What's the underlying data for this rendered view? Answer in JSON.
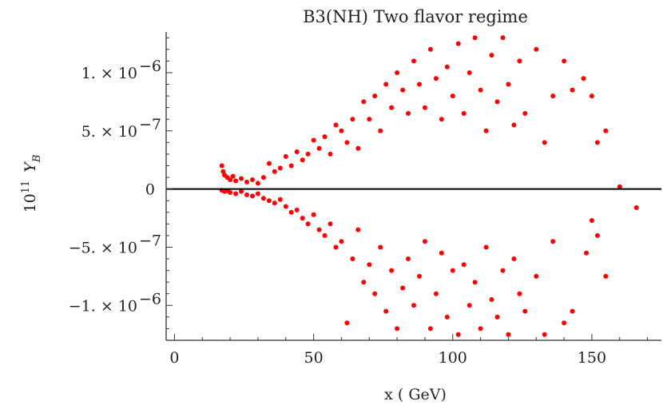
{
  "chart_data": {
    "type": "scatter",
    "title": "B3(NH) Two flavor regime",
    "xlabel": "x ( GeV)",
    "ylabel_prefix": "10",
    "ylabel_exp": "11",
    "ylabel_symbol": "Y",
    "ylabel_sub": "B",
    "xlim": [
      -3,
      175
    ],
    "ylim": [
      -1.3e-06,
      1.35e-06
    ],
    "x_ticks": [
      {
        "value": 0,
        "label": "0"
      },
      {
        "value": 50,
        "label": "50"
      },
      {
        "value": 100,
        "label": "100"
      },
      {
        "value": 150,
        "label": "150"
      }
    ],
    "y_ticks": [
      {
        "value": 1e-06,
        "mant": "1. × 10",
        "exp": "−6"
      },
      {
        "value": 5e-07,
        "mant": "5. × 10",
        "exp": "−7"
      },
      {
        "value": 0,
        "mant": "0",
        "exp": ""
      },
      {
        "value": -5e-07,
        "mant": "−5. × 10",
        "exp": "−7"
      },
      {
        "value": -1e-06,
        "mant": "−1. × 10",
        "exp": "−6"
      }
    ],
    "marker_color": "#ff0000",
    "zero_line": true,
    "series": [
      {
        "points": [
          [
            17,
            2e-07
          ],
          [
            17.5,
            1.5e-07
          ],
          [
            18,
            1.2e-07
          ],
          [
            19,
            1e-07
          ],
          [
            20,
            8e-08
          ],
          [
            21,
            1.1e-07
          ],
          [
            22,
            7e-08
          ],
          [
            24,
            9e-08
          ],
          [
            26,
            6e-08
          ],
          [
            28,
            8e-08
          ],
          [
            30,
            5e-08
          ],
          [
            32,
            1e-07
          ],
          [
            34,
            2.2e-07
          ],
          [
            36,
            1.5e-07
          ],
          [
            38,
            1.8e-07
          ],
          [
            40,
            2.8e-07
          ],
          [
            42,
            2e-07
          ],
          [
            44,
            3.2e-07
          ],
          [
            46,
            2.5e-07
          ],
          [
            48,
            3e-07
          ],
          [
            50,
            4.2e-07
          ],
          [
            52,
            3.5e-07
          ],
          [
            54,
            4.5e-07
          ],
          [
            56,
            3e-07
          ],
          [
            58,
            5.5e-07
          ],
          [
            60,
            5e-07
          ],
          [
            62,
            4e-07
          ],
          [
            64,
            6e-07
          ],
          [
            66,
            3.5e-07
          ],
          [
            68,
            7.5e-07
          ],
          [
            70,
            6e-07
          ],
          [
            72,
            8e-07
          ],
          [
            74,
            5e-07
          ],
          [
            76,
            9e-07
          ],
          [
            78,
            7e-07
          ],
          [
            80,
            1e-06
          ],
          [
            82,
            8.5e-07
          ],
          [
            84,
            6.5e-07
          ],
          [
            86,
            1.1e-06
          ],
          [
            88,
            9e-07
          ],
          [
            90,
            7e-07
          ],
          [
            92,
            1.2e-06
          ],
          [
            94,
            9.5e-07
          ],
          [
            96,
            6e-07
          ],
          [
            98,
            1.05e-06
          ],
          [
            100,
            8e-07
          ],
          [
            102,
            1.25e-06
          ],
          [
            104,
            6.5e-07
          ],
          [
            106,
            1e-06
          ],
          [
            108,
            1.3e-06
          ],
          [
            110,
            8.5e-07
          ],
          [
            112,
            5e-07
          ],
          [
            114,
            1.15e-06
          ],
          [
            116,
            7.5e-07
          ],
          [
            118,
            1.3e-06
          ],
          [
            120,
            9e-07
          ],
          [
            122,
            5.5e-07
          ],
          [
            124,
            1.1e-06
          ],
          [
            126,
            6.5e-07
          ],
          [
            130,
            1.2e-06
          ],
          [
            133,
            4e-07
          ],
          [
            136,
            8e-07
          ],
          [
            140,
            1.1e-06
          ],
          [
            143,
            8.5e-07
          ],
          [
            147,
            9.5e-07
          ],
          [
            150,
            8e-07
          ],
          [
            152,
            4e-07
          ],
          [
            155,
            5e-07
          ],
          [
            160,
            2e-08
          ],
          [
            166,
            -1.6e-07
          ],
          [
            17,
            -1e-08
          ],
          [
            18,
            -2e-08
          ],
          [
            19,
            -1.5e-08
          ],
          [
            20,
            -3e-08
          ],
          [
            22,
            -4e-08
          ],
          [
            24,
            -2e-08
          ],
          [
            26,
            -5e-08
          ],
          [
            28,
            -6e-08
          ],
          [
            30,
            -4e-08
          ],
          [
            32,
            -8e-08
          ],
          [
            34,
            -1e-07
          ],
          [
            36,
            -1.2e-07
          ],
          [
            38,
            -9e-08
          ],
          [
            40,
            -1.5e-07
          ],
          [
            42,
            -2e-07
          ],
          [
            44,
            -1.8e-07
          ],
          [
            46,
            -2.5e-07
          ],
          [
            48,
            -3e-07
          ],
          [
            50,
            -2.2e-07
          ],
          [
            52,
            -3.5e-07
          ],
          [
            54,
            -4e-07
          ],
          [
            56,
            -3e-07
          ],
          [
            58,
            -5e-07
          ],
          [
            60,
            -4.5e-07
          ],
          [
            62,
            -1.15e-06
          ],
          [
            64,
            -6e-07
          ],
          [
            66,
            -3.5e-07
          ],
          [
            68,
            -8e-07
          ],
          [
            70,
            -6.5e-07
          ],
          [
            72,
            -9e-07
          ],
          [
            74,
            -5e-07
          ],
          [
            76,
            -1.05e-06
          ],
          [
            78,
            -7e-07
          ],
          [
            80,
            -1.2e-06
          ],
          [
            82,
            -8.5e-07
          ],
          [
            84,
            -6e-07
          ],
          [
            86,
            -1e-06
          ],
          [
            88,
            -7.5e-07
          ],
          [
            90,
            -4.5e-07
          ],
          [
            92,
            -1.2e-06
          ],
          [
            94,
            -9e-07
          ],
          [
            96,
            -5.5e-07
          ],
          [
            98,
            -1.1e-06
          ],
          [
            100,
            -7e-07
          ],
          [
            102,
            -1.25e-06
          ],
          [
            104,
            -6.5e-07
          ],
          [
            106,
            -1e-06
          ],
          [
            108,
            -8e-07
          ],
          [
            110,
            -1.2e-06
          ],
          [
            112,
            -5e-07
          ],
          [
            114,
            -9.5e-07
          ],
          [
            116,
            -1.1e-06
          ],
          [
            118,
            -7e-07
          ],
          [
            120,
            -1.25e-06
          ],
          [
            122,
            -6e-07
          ],
          [
            124,
            -9e-07
          ],
          [
            126,
            -1.05e-06
          ],
          [
            130,
            -7.5e-07
          ],
          [
            133,
            -1.25e-06
          ],
          [
            136,
            -4.5e-07
          ],
          [
            140,
            -1.15e-06
          ],
          [
            143,
            -1.05e-06
          ],
          [
            148,
            -5.5e-07
          ],
          [
            150,
            -2.7e-07
          ],
          [
            152,
            -4e-07
          ],
          [
            155,
            -7.5e-07
          ]
        ]
      }
    ]
  }
}
